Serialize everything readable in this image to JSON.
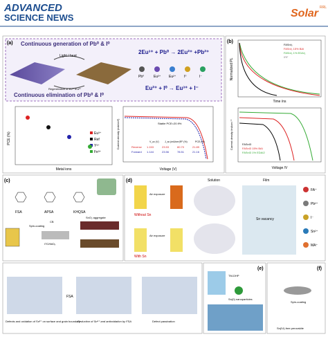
{
  "header": {
    "brand_line1": "ADVANCED",
    "brand_line2": "SCIENCE NEWS",
    "journal": "Solar",
    "journal_tag": "RRL"
  },
  "panel_a": {
    "label": "(a)",
    "top_text": "Continuous generation of Pb⁰ & I⁰",
    "bottom_text": "Continuous elimination of Pb⁰ & I⁰",
    "arrow_top": "Light / heat",
    "arrow_bottom": "Regeneration of Eu³⁺/Eu²⁺",
    "eq1": "2Eu³⁺ + Pb⁰ → 2Eu²⁺ +Pb²⁺",
    "eq2": "Eu²⁺ + I⁰ → Eu³⁺ + I⁻",
    "ions": [
      "Pb⁰",
      "Eu³⁺",
      "Eu²⁺",
      "I⁰",
      "I⁻"
    ],
    "pce_axis": "PCE (%)",
    "pce_xaxis": "Metal ions",
    "legend": [
      "Eu³⁺",
      "Ref",
      "Y³⁺",
      "Fe³⁺"
    ],
    "jv_yaxis": "Current density (mA/cm²)",
    "jv_xaxis": "Voltage (V)",
    "stable": "Stable PCE=20.9%",
    "table_header": [
      "V_oc (V)",
      "J_sc (mA/cm²)",
      "FF (%)",
      "PCE (%)"
    ],
    "table_rows": [
      [
        "Reverse",
        "1.153",
        "23.53",
        "80.70",
        "21.89"
      ],
      [
        "Forward",
        "1.144",
        "23.56",
        "78.51",
        "21.16"
      ]
    ]
  },
  "panel_b": {
    "label": "(b)",
    "pl_yaxis": "Normalized PL",
    "pl_xaxis": "Time /ns",
    "pl_legend": [
      "FASnI₃",
      "FASnI₃ 15% BAI",
      "FASnI₃ 1% EDAI₂",
      "IRF"
    ],
    "jv_yaxis": "Current density /mAcm⁻²",
    "jv_xaxis": "Voltage /V",
    "jv_legend": [
      "FASnI3",
      "FASnI3 15% BAI",
      "FASnI3 1% EDAI2"
    ]
  },
  "panel_c": {
    "label": "(c)",
    "molecules": [
      "FSA",
      "APSA",
      "KHQSA"
    ],
    "step1": "Spin-coating",
    "step2": "CB",
    "substrate": "ITO/NiOₓ",
    "aggregate": "SnO₂ aggregate"
  },
  "panel_d": {
    "label": "(d)",
    "air": "Air exposure",
    "solution": "Solution",
    "film": "Film",
    "with": "With Sn",
    "without": "Without Sn",
    "vacancy": "Sn vacancy",
    "species": [
      "FA⁺",
      "Pb²⁺",
      "I⁻",
      "Sn²⁺",
      "MA⁺"
    ]
  },
  "panel_bottom": {
    "caption1": "Defects and oxidation of Sn²⁺ on surface and grain boundary",
    "arrow1": "FSA",
    "caption2": "Reduction of Sn⁴⁺ and antioxidation by FSA",
    "caption3": "Defect passivation"
  },
  "panel_e": {
    "label": "(e)",
    "reagent": "TM-DHP",
    "product": "Sn(0) nanoparticles"
  },
  "panel_f": {
    "label": "(f)",
    "step": "Spin-coating",
    "film": "Sn(IV)-free perovskite"
  }
}
